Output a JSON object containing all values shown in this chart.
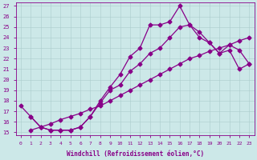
{
  "xlabel": "Windchill (Refroidissement éolien,°C)",
  "bg_color": "#cce8e8",
  "line_color": "#880088",
  "marker": "D",
  "xlim_min": -0.5,
  "xlim_max": 23.5,
  "ylim_min": 14.7,
  "ylim_max": 27.3,
  "yticks": [
    15,
    16,
    17,
    18,
    19,
    20,
    21,
    22,
    23,
    24,
    25,
    26,
    27
  ],
  "xticks": [
    0,
    1,
    2,
    3,
    4,
    5,
    6,
    7,
    8,
    9,
    10,
    11,
    12,
    13,
    14,
    15,
    16,
    17,
    18,
    19,
    20,
    21,
    22,
    23
  ],
  "line1_x": [
    0,
    1,
    2,
    3,
    4,
    5,
    6,
    7,
    8,
    9,
    10,
    11,
    12,
    13,
    14,
    15,
    16,
    17,
    18,
    19,
    20,
    21,
    22,
    23
  ],
  "line1_y": [
    17.5,
    16.5,
    15.5,
    15.2,
    15.2,
    15.2,
    15.5,
    16.5,
    18.0,
    19.3,
    20.5,
    22.2,
    23.0,
    25.2,
    25.2,
    25.5,
    27.0,
    25.2,
    24.5,
    23.5,
    22.5,
    22.8,
    21.0,
    21.5
  ],
  "line2_x": [
    1,
    2,
    3,
    4,
    5,
    6,
    7,
    8,
    9,
    10,
    11,
    12,
    13,
    14,
    15,
    16,
    17,
    18,
    19,
    20,
    21,
    22,
    23
  ],
  "line2_y": [
    15.2,
    15.5,
    15.8,
    16.2,
    16.5,
    16.8,
    17.2,
    17.5,
    18.0,
    18.5,
    19.0,
    19.5,
    20.0,
    20.5,
    21.0,
    21.5,
    22.0,
    22.3,
    22.7,
    23.0,
    23.3,
    23.7,
    24.0
  ],
  "line3_x": [
    1,
    2,
    3,
    4,
    5,
    6,
    7,
    8,
    9,
    10,
    11,
    12,
    13,
    14,
    15,
    16,
    17,
    18,
    19,
    20,
    21,
    22,
    23
  ],
  "line3_y": [
    16.5,
    15.5,
    15.2,
    15.2,
    15.2,
    15.5,
    16.5,
    17.8,
    19.0,
    19.5,
    20.8,
    21.5,
    22.5,
    23.0,
    24.0,
    25.0,
    25.2,
    24.0,
    23.5,
    22.5,
    23.3,
    22.8,
    21.5
  ],
  "markersize": 2.5,
  "linewidth": 0.9
}
